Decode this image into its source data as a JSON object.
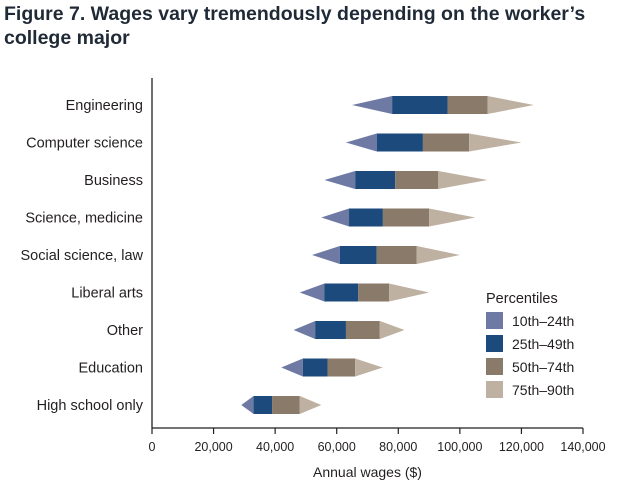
{
  "chart_data": {
    "type": "bar",
    "title": "Figure 7. Wages vary tremendously depending on the worker’s college major",
    "xlabel": "Annual wages ($)",
    "ylabel": "",
    "xlim": [
      0,
      140000
    ],
    "xticks": [
      0,
      20000,
      40000,
      60000,
      80000,
      100000,
      120000,
      140000
    ],
    "xtick_labels": [
      "0",
      "20,000",
      "40,000",
      "60,000",
      "80,000",
      "100,000",
      "120,000",
      "140,000"
    ],
    "grid": false,
    "legend": {
      "title": "Percentiles",
      "position": "bottom-right",
      "items": [
        {
          "label": "10th–24th",
          "color": "#6e7aa3"
        },
        {
          "label": "25th–49th",
          "color": "#1c4a7c"
        },
        {
          "label": "50th–74th",
          "color": "#8a7a6a"
        },
        {
          "label": "75th–90th",
          "color": "#bfb1a2"
        }
      ]
    },
    "categories": [
      "Engineering",
      "Computer science",
      "Business",
      "Science, medicine",
      "Social science, law",
      "Liberal arts",
      "Other",
      "Education",
      "High school only"
    ],
    "percentile_keys": [
      "p10",
      "p25",
      "p50",
      "p75",
      "p90"
    ],
    "values": [
      {
        "p10": 65000,
        "p25": 78000,
        "p50": 96000,
        "p75": 109000,
        "p90": 124000
      },
      {
        "p10": 63000,
        "p25": 73000,
        "p50": 88000,
        "p75": 103000,
        "p90": 120000
      },
      {
        "p10": 56000,
        "p25": 66000,
        "p50": 79000,
        "p75": 93000,
        "p90": 109000
      },
      {
        "p10": 55000,
        "p25": 64000,
        "p50": 75000,
        "p75": 90000,
        "p90": 105000
      },
      {
        "p10": 52000,
        "p25": 61000,
        "p50": 73000,
        "p75": 86000,
        "p90": 100000
      },
      {
        "p10": 48000,
        "p25": 56000,
        "p50": 67000,
        "p75": 77000,
        "p90": 90000
      },
      {
        "p10": 46000,
        "p25": 53000,
        "p50": 63000,
        "p75": 74000,
        "p90": 82000
      },
      {
        "p10": 42000,
        "p25": 49000,
        "p50": 57000,
        "p75": 66000,
        "p90": 75000
      },
      {
        "p10": 29000,
        "p25": 33000,
        "p50": 39000,
        "p75": 48000,
        "p90": 55000
      }
    ]
  }
}
